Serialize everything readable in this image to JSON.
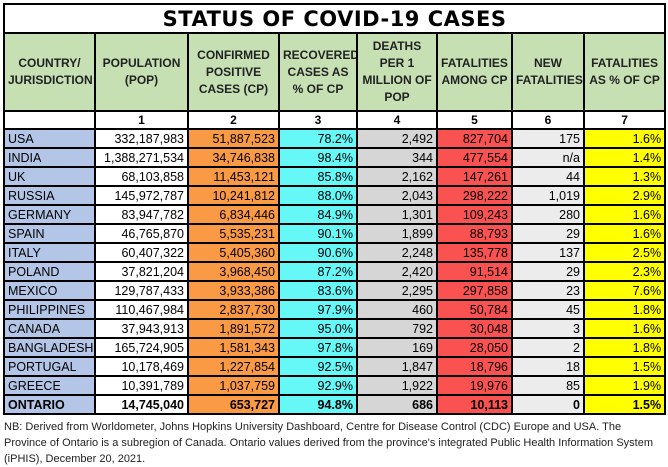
{
  "title": "STATUS OF COVID-19 CASES",
  "headers": [
    "COUNTRY/ JURISDICTION",
    "POPULATION (POP)",
    "CONFIRMED POSITIVE CASES (CP)",
    "RECOVERED CASES AS % OF CP",
    "DEATHS PER 1 MILLION OF POP",
    "FATALITIES AMONG CP",
    "NEW FATALITIES",
    "FATALITIES AS % OF CP"
  ],
  "column_numbers": [
    "",
    "1",
    "2",
    "3",
    "4",
    "5",
    "6",
    "7"
  ],
  "column_colors": [
    "#b4c6e7",
    "#ffffff",
    "#fb9a45",
    "#66f7f7",
    "#d6d6d6",
    "#fa5151",
    "#ececec",
    "#ffff00"
  ],
  "rows": [
    [
      "USA",
      "332,187,983",
      "51,887,523",
      "78.2%",
      "2,492",
      "827,704",
      "175",
      "1.6%"
    ],
    [
      "INDIA",
      "1,388,271,534",
      "34,746,838",
      "98.4%",
      "344",
      "477,554",
      "n/a",
      "1.4%"
    ],
    [
      "UK",
      "68,103,858",
      "11,453,121",
      "85.8%",
      "2,162",
      "147,261",
      "44",
      "1.3%"
    ],
    [
      "RUSSIA",
      "145,972,787",
      "10,241,812",
      "88.0%",
      "2,043",
      "298,222",
      "1,019",
      "2.9%"
    ],
    [
      "GERMANY",
      "83,947,782",
      "6,834,446",
      "84.9%",
      "1,301",
      "109,243",
      "280",
      "1.6%"
    ],
    [
      "SPAIN",
      "46,765,870",
      "5,535,231",
      "90.1%",
      "1,899",
      "88,793",
      "29",
      "1.6%"
    ],
    [
      "ITALY",
      "60,407,322",
      "5,405,360",
      "90.6%",
      "2,248",
      "135,778",
      "137",
      "2.5%"
    ],
    [
      "POLAND",
      "37,821,204",
      "3,968,450",
      "87.2%",
      "2,420",
      "91,514",
      "29",
      "2.3%"
    ],
    [
      "MEXICO",
      "129,787,433",
      "3,933,386",
      "83.6%",
      "2,295",
      "297,858",
      "23",
      "7.6%"
    ],
    [
      "PHILIPPINES",
      "110,467,984",
      "2,837,730",
      "97.9%",
      "460",
      "50,784",
      "45",
      "1.8%"
    ],
    [
      "CANADA",
      "37,943,913",
      "1,891,572",
      "95.0%",
      "792",
      "30,048",
      "3",
      "1.6%"
    ],
    [
      "BANGLADESH",
      "165,724,905",
      "1,581,343",
      "97.8%",
      "169",
      "28,050",
      "2",
      "1.8%"
    ],
    [
      "PORTUGAL",
      "10,178,469",
      "1,227,854",
      "92.5%",
      "1,847",
      "18,796",
      "18",
      "1.5%"
    ],
    [
      "GREECE",
      "10,391,789",
      "1,037,759",
      "92.9%",
      "1,922",
      "19,976",
      "85",
      "1.9%"
    ],
    [
      "ONTARIO",
      "14,745,040",
      "653,727",
      "94.8%",
      "686",
      "10,113",
      "0",
      "1.5%"
    ]
  ],
  "footnote": "NB: Derived from Worldometer, Johns Hopkins University Dashboard, Centre for Disease Control (CDC) Europe and USA. The Province of Ontario is a subregion of Canada. Ontario values derived from the province's integrated Public Health Information System (iPHIS), December 20, 2021."
}
